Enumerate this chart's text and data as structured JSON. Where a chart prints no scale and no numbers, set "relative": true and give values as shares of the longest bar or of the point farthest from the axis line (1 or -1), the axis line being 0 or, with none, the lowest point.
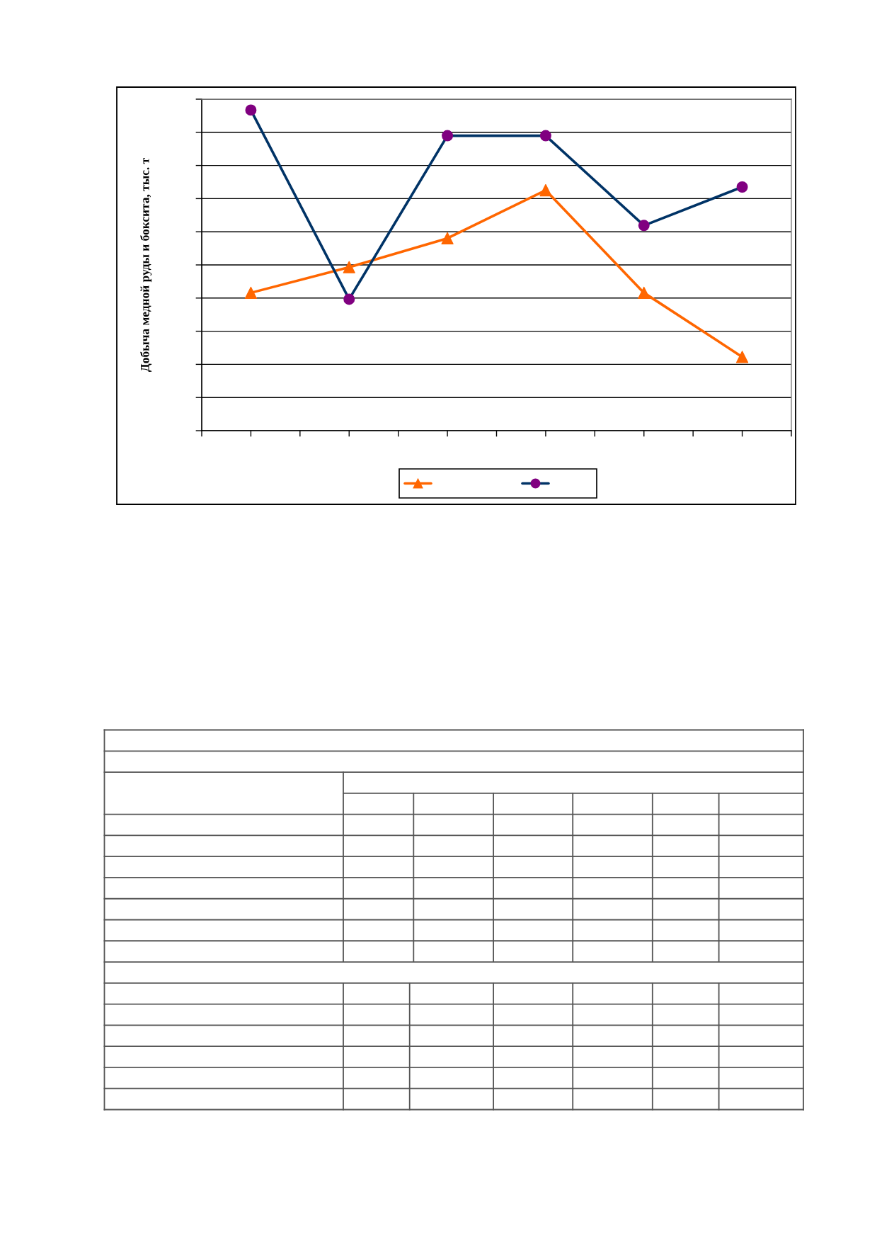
{
  "chart_data": {
    "type": "line",
    "ylabel": "Добыча медной руды и боксита, тыс. т",
    "categories": [
      null,
      null,
      null,
      null,
      null,
      null
    ],
    "relative": true,
    "grid": "y",
    "line_style": "solid",
    "series": [
      {
        "color": "#ff6600",
        "marker": "triangle",
        "colors": [
          "#ff6600",
          "#ff6600",
          "#ff6600",
          "#ff6600",
          "#ff6600",
          "#ff6600"
        ],
        "values": [
          0.43,
          0.51,
          0.6,
          0.75,
          0.43,
          0.23
        ]
      },
      {
        "color": "#003366",
        "marker": "circle",
        "colors": [
          "#800080",
          "#800080",
          "#800080",
          "#800080",
          "#800080",
          "#800080"
        ],
        "values": [
          1,
          0.41,
          0.92,
          0.92,
          0.64,
          0.76
        ]
      }
    ]
  }
}
